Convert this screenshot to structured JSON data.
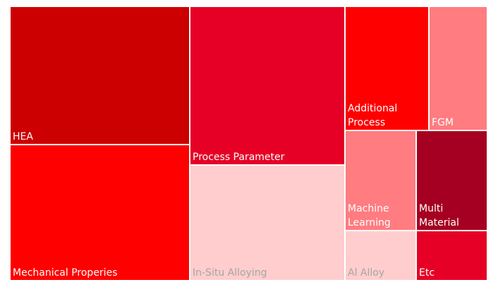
{
  "chart_data": {
    "type": "treemap",
    "title": "",
    "items": [
      {
        "label": "HEA",
        "color": "#cc0000",
        "text_color": "#ffffff"
      },
      {
        "label": "Mechanical Properies",
        "color": "#ff0000",
        "text_color": "#ffffff"
      },
      {
        "label": "Process Parameter",
        "color": "#e60026",
        "text_color": "#ffffff"
      },
      {
        "label": "In-Situ Alloying",
        "color": "#ffcdce",
        "text_color": "#a6a6a6"
      },
      {
        "label": "Additional Process",
        "color": "#ff0000",
        "text_color": "#ffffff"
      },
      {
        "label": "FGM",
        "color": "#ff7c80",
        "text_color": "#ffffff"
      },
      {
        "label": "Machine Learning",
        "color": "#ff7c80",
        "text_color": "#ffffff"
      },
      {
        "label": "Multi Material",
        "color": "#a50021",
        "text_color": "#ffffff"
      },
      {
        "label": "Al Alloy",
        "color": "#ffcdce",
        "text_color": "#a6a6a6"
      },
      {
        "label": "Etc",
        "color": "#e60026",
        "text_color": "#ffffff"
      }
    ]
  }
}
